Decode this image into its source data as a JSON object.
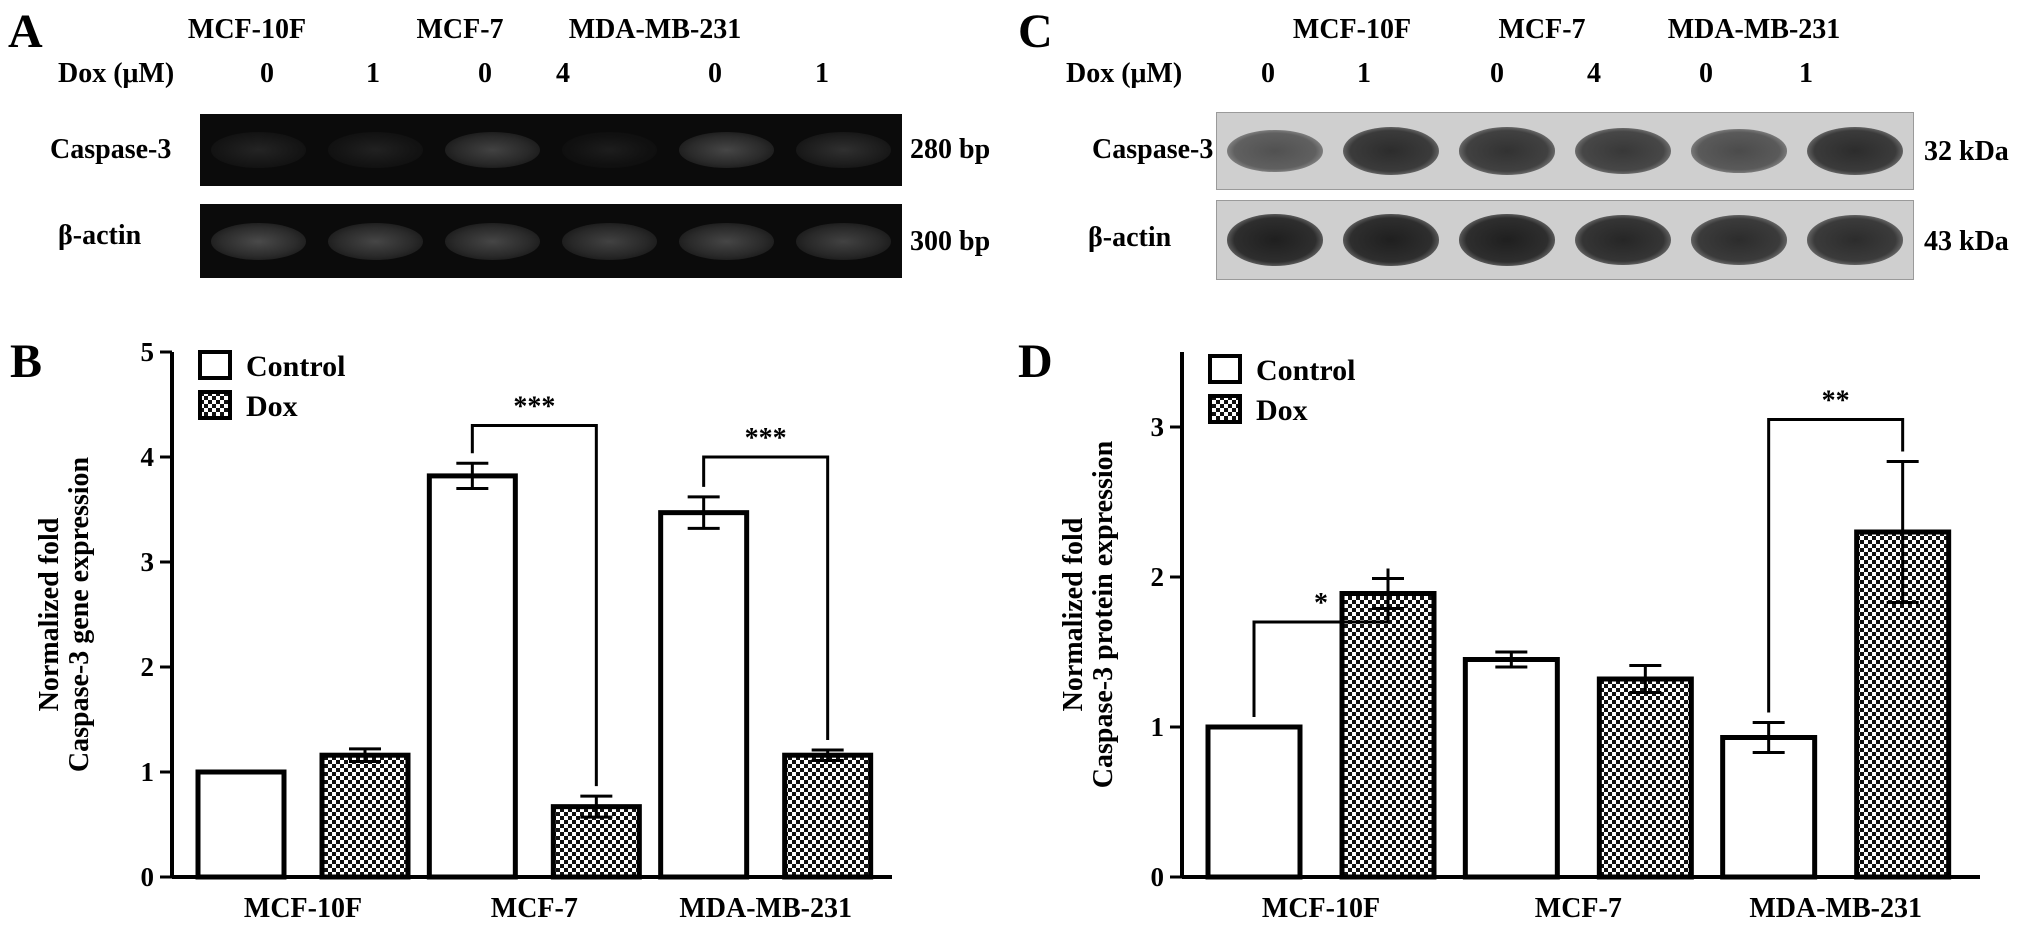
{
  "panel_labels": [
    "A",
    "B",
    "C",
    "D"
  ],
  "colors": {
    "bar_outline": "#000000",
    "control_fill": "#ffffff",
    "dox_pattern": "checkerboard",
    "gel_background": "#0b0b0b",
    "blot_background": "#cfcfcf"
  },
  "panel_a": {
    "cell_lines": [
      "MCF-10F",
      "MCF-7",
      "MDA-MB-231"
    ],
    "dose_label": "Dox (μM)",
    "doses": [
      "0",
      "1",
      "0",
      "4",
      "0",
      "1"
    ],
    "rows": [
      {
        "label": "Caspase-3",
        "size": "280 bp",
        "intensity": [
          0.15,
          0.1,
          0.55,
          0.05,
          0.6,
          0.3
        ]
      },
      {
        "label": "β-actin",
        "size": "300 bp",
        "intensity": [
          0.65,
          0.6,
          0.6,
          0.55,
          0.6,
          0.55
        ]
      }
    ]
  },
  "panel_c": {
    "cell_lines": [
      "MCF-10F",
      "MCF-7",
      "MDA-MB-231"
    ],
    "dose_label": "Dox (μM)",
    "doses": [
      "0",
      "1",
      "0",
      "4",
      "0",
      "1"
    ],
    "rows": [
      {
        "label": "Caspase-3",
        "size": "32 kDa",
        "intensity": [
          0.55,
          0.85,
          0.8,
          0.75,
          0.6,
          0.85
        ]
      },
      {
        "label": "β-actin",
        "size": "43 kDa",
        "intensity": [
          0.95,
          0.95,
          0.95,
          0.9,
          0.85,
          0.85
        ]
      }
    ]
  },
  "chart_data": [
    {
      "panel": "B",
      "type": "bar",
      "title": "",
      "xlabel": "",
      "ylabel": "Normalized fold Caspase-3 gene expression",
      "ylabel_lines": [
        "Normalized fold",
        "Caspase-3 gene expression"
      ],
      "categories": [
        "MCF-10F",
        "MCF-7",
        "MDA-MB-231"
      ],
      "ylim": [
        0,
        5
      ],
      "yticks": [
        0,
        1,
        2,
        3,
        4,
        5
      ],
      "legend": {
        "position": "top-left",
        "entries": [
          "Control",
          "Dox"
        ]
      },
      "series": [
        {
          "name": "Control",
          "values": [
            1.0,
            3.82,
            3.47
          ],
          "errors": [
            0,
            0.12,
            0.15
          ]
        },
        {
          "name": "Dox",
          "values": [
            1.16,
            0.67,
            1.16
          ],
          "errors": [
            0.06,
            0.1,
            0.05
          ]
        }
      ],
      "significance": [
        {
          "category": 1,
          "label": "***",
          "bracket_y": 4.3
        },
        {
          "category": 2,
          "label": "***",
          "bracket_y": 4.0
        }
      ]
    },
    {
      "panel": "D",
      "type": "bar",
      "title": "",
      "xlabel": "",
      "ylabel": "Normalized fold Caspase-3 protein expression",
      "ylabel_lines": [
        "Normalized fold",
        "Caspase-3 protein expression"
      ],
      "categories": [
        "MCF-10F",
        "MCF-7",
        "MDA-MB-231"
      ],
      "ylim": [
        0,
        3.5
      ],
      "yticks": [
        0,
        1,
        2,
        3
      ],
      "legend": {
        "position": "top-left",
        "entries": [
          "Control",
          "Dox"
        ]
      },
      "series": [
        {
          "name": "Control",
          "values": [
            1.0,
            1.45,
            0.93
          ],
          "errors": [
            0,
            0.05,
            0.1
          ]
        },
        {
          "name": "Dox",
          "values": [
            1.89,
            1.32,
            2.3
          ],
          "errors": [
            0.1,
            0.09,
            0.47
          ]
        }
      ],
      "significance": [
        {
          "category": 0,
          "label": "*",
          "bracket_y": 1.7
        },
        {
          "category": 2,
          "label": "**",
          "bracket_y": 3.05
        }
      ]
    }
  ]
}
